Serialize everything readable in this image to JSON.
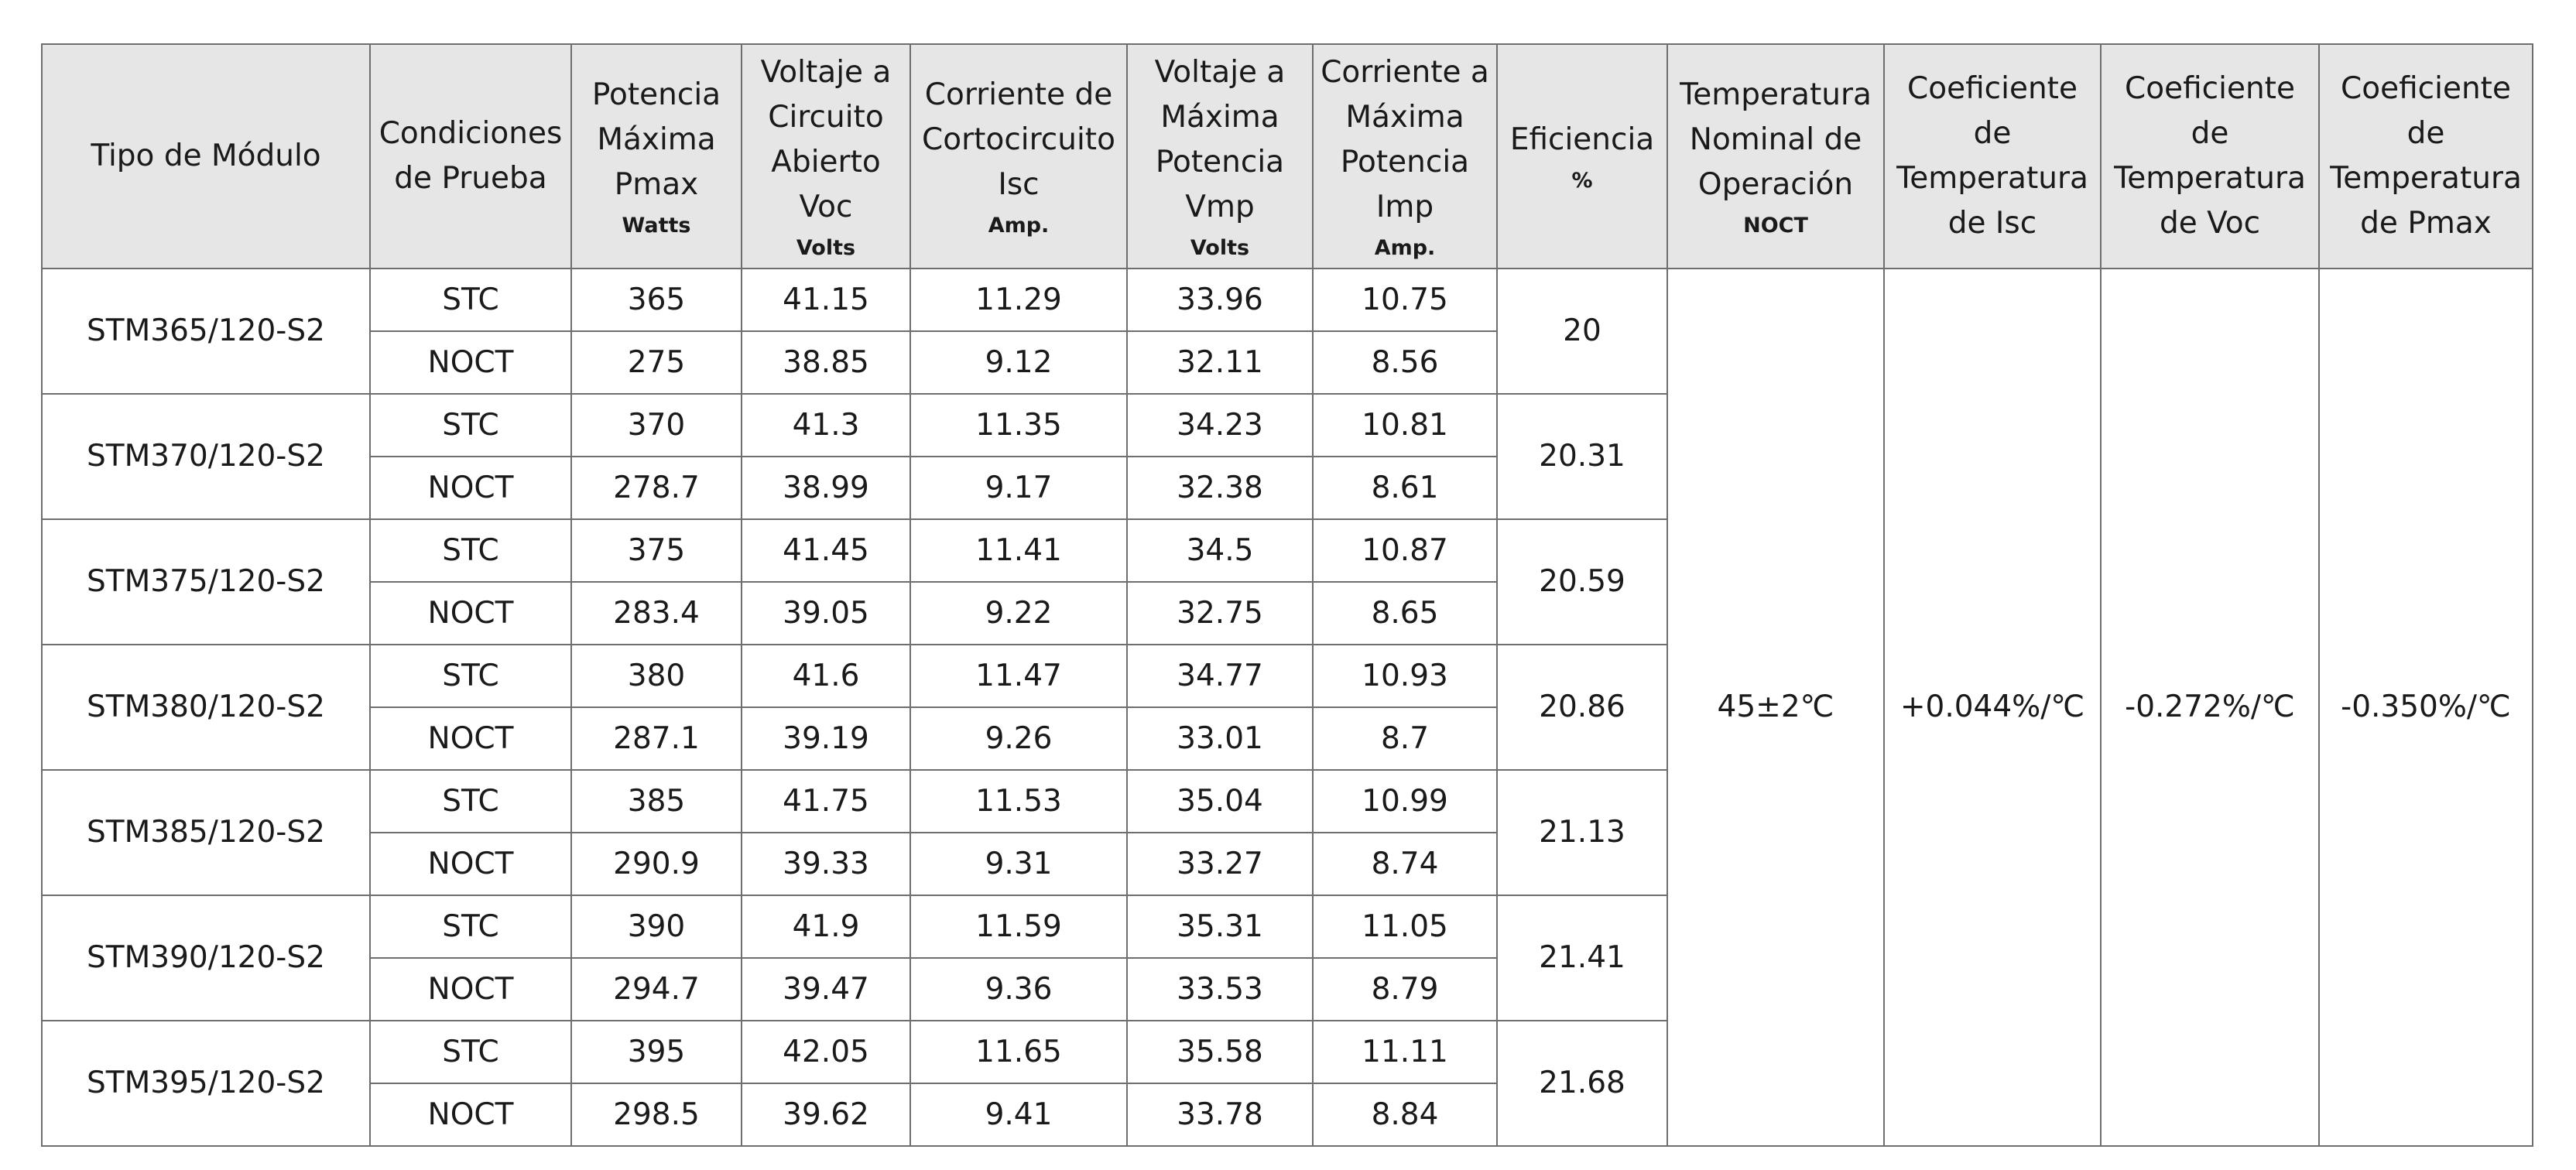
{
  "headers": [
    {
      "label": "Tipo de Módulo",
      "unit": ""
    },
    {
      "label": "Condiciones de Prueba",
      "unit": ""
    },
    {
      "label": "Potencia Máxima Pmax",
      "unit": "Watts"
    },
    {
      "label": "Voltaje a Circuito Abierto Voc",
      "unit": "Volts"
    },
    {
      "label": "Corriente de Cortocircuito Isc",
      "unit": "Amp."
    },
    {
      "label": "Voltaje a Máxima Potencia Vmp",
      "unit": "Volts"
    },
    {
      "label": "Corriente a Máxima Potencia Imp",
      "unit": "Amp."
    },
    {
      "label": "Eficiencia",
      "unit": "%"
    },
    {
      "label": "Temperatura Nominal de Operación",
      "unit": "NOCT"
    },
    {
      "label": "Coeficiente de Temperatura de Isc",
      "unit": ""
    },
    {
      "label": "Coeficiente de Temperatura de Voc",
      "unit": ""
    },
    {
      "label": "Coeficiente de Temperatura de Pmax",
      "unit": ""
    }
  ],
  "modules": [
    {
      "model": "STM365/120-S2",
      "efficiency": "20",
      "stc": {
        "cond": "STC",
        "pmax": "365",
        "voc": "41.15",
        "isc": "11.29",
        "vmp": "33.96",
        "imp": "10.75"
      },
      "noct": {
        "cond": "NOCT",
        "pmax": "275",
        "voc": "38.85",
        "isc": "9.12",
        "vmp": "32.11",
        "imp": "8.56"
      }
    },
    {
      "model": "STM370/120-S2",
      "efficiency": "20.31",
      "stc": {
        "cond": "STC",
        "pmax": "370",
        "voc": "41.3",
        "isc": "11.35",
        "vmp": "34.23",
        "imp": "10.81"
      },
      "noct": {
        "cond": "NOCT",
        "pmax": "278.7",
        "voc": "38.99",
        "isc": "9.17",
        "vmp": "32.38",
        "imp": "8.61"
      }
    },
    {
      "model": "STM375/120-S2",
      "efficiency": "20.59",
      "stc": {
        "cond": "STC",
        "pmax": "375",
        "voc": "41.45",
        "isc": "11.41",
        "vmp": "34.5",
        "imp": "10.87"
      },
      "noct": {
        "cond": "NOCT",
        "pmax": "283.4",
        "voc": "39.05",
        "isc": "9.22",
        "vmp": "32.75",
        "imp": "8.65"
      }
    },
    {
      "model": "STM380/120-S2",
      "efficiency": "20.86",
      "stc": {
        "cond": "STC",
        "pmax": "380",
        "voc": "41.6",
        "isc": "11.47",
        "vmp": "34.77",
        "imp": "10.93"
      },
      "noct": {
        "cond": "NOCT",
        "pmax": "287.1",
        "voc": "39.19",
        "isc": "9.26",
        "vmp": "33.01",
        "imp": "8.7"
      }
    },
    {
      "model": "STM385/120-S2",
      "efficiency": "21.13",
      "stc": {
        "cond": "STC",
        "pmax": "385",
        "voc": "41.75",
        "isc": "11.53",
        "vmp": "35.04",
        "imp": "10.99"
      },
      "noct": {
        "cond": "NOCT",
        "pmax": "290.9",
        "voc": "39.33",
        "isc": "9.31",
        "vmp": "33.27",
        "imp": "8.74"
      }
    },
    {
      "model": "STM390/120-S2",
      "efficiency": "21.41",
      "stc": {
        "cond": "STC",
        "pmax": "390",
        "voc": "41.9",
        "isc": "11.59",
        "vmp": "35.31",
        "imp": "11.05"
      },
      "noct": {
        "cond": "NOCT",
        "pmax": "294.7",
        "voc": "39.47",
        "isc": "9.36",
        "vmp": "33.53",
        "imp": "8.79"
      }
    },
    {
      "model": "STM395/120-S2",
      "efficiency": "21.68",
      "stc": {
        "cond": "STC",
        "pmax": "395",
        "voc": "42.05",
        "isc": "11.65",
        "vmp": "35.58",
        "imp": "11.11"
      },
      "noct": {
        "cond": "NOCT",
        "pmax": "298.5",
        "voc": "39.62",
        "isc": "9.41",
        "vmp": "33.78",
        "imp": "8.84"
      }
    }
  ],
  "shared": {
    "noct_temp": "45±2℃",
    "coef_isc": "+0.044%/℃",
    "coef_voc": "-0.272%/℃",
    "coef_pmax": "-0.350%/℃"
  }
}
